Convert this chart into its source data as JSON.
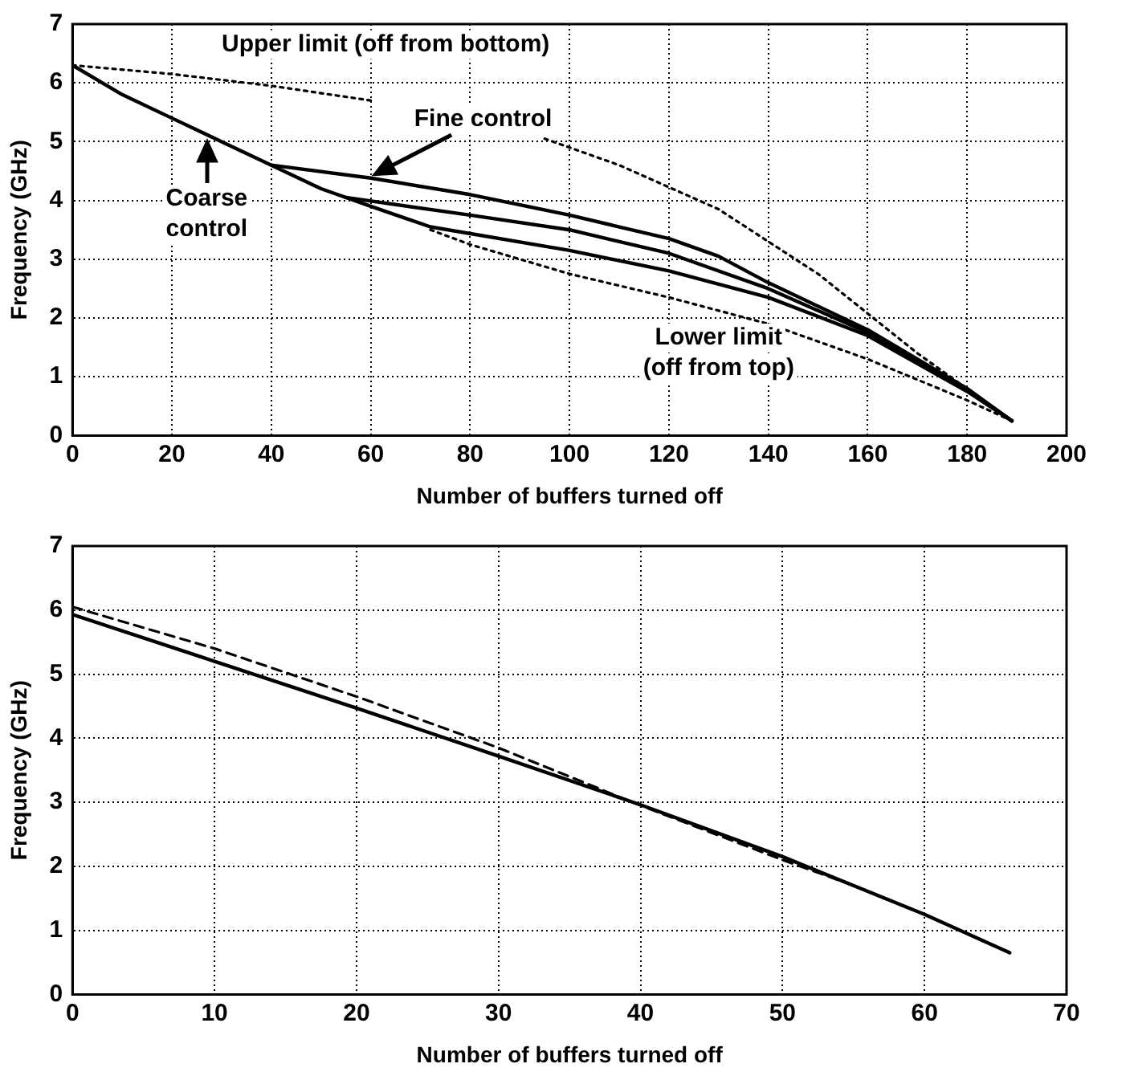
{
  "chart_data": [
    {
      "type": "line",
      "xlabel": "Number of buffers turned off",
      "ylabel": "Frequency (GHz)",
      "xlim": [
        0,
        200
      ],
      "xticks": [
        0,
        20,
        40,
        60,
        80,
        100,
        120,
        140,
        160,
        180,
        200
      ],
      "ylim": [
        0,
        7
      ],
      "yticks": [
        0,
        1,
        2,
        3,
        4,
        5,
        6,
        7
      ],
      "grid": true,
      "legend": false,
      "marker": "none",
      "annotations": [
        "Upper limit (off from bottom)",
        {
          "text": "Fine control",
          "x": 60,
          "y": 4.4
        },
        {
          "text": "Coarse\ncontrol",
          "x": 27,
          "y": 5.1
        },
        "Lower limit\n(off from top)"
      ],
      "series": [
        {
          "color": "#000000",
          "line_style": "solid",
          "x": [
            0,
            10,
            20,
            30,
            40,
            50,
            60,
            72,
            100,
            120,
            140,
            160,
            180,
            189
          ],
          "values": [
            6.3,
            5.8,
            5.4,
            5.0,
            4.6,
            4.2,
            3.9,
            3.55,
            3.15,
            2.8,
            2.35,
            1.7,
            0.75,
            0.25
          ]
        },
        {
          "color": "#000000",
          "line_style": "solid",
          "x": [
            40,
            60,
            80,
            100,
            120,
            130,
            140,
            160,
            180,
            189
          ],
          "values": [
            4.6,
            4.38,
            4.1,
            3.75,
            3.35,
            3.05,
            2.6,
            1.8,
            0.8,
            0.25
          ]
        },
        {
          "color": "#000000",
          "line_style": "solid",
          "x": [
            55,
            80,
            100,
            120,
            140,
            160,
            180,
            189
          ],
          "values": [
            4.05,
            3.75,
            3.5,
            3.1,
            2.5,
            1.75,
            0.78,
            0.25
          ]
        },
        {
          "color": "#000000",
          "line_style": "dotted",
          "x": [
            0,
            20,
            40,
            60
          ],
          "values": [
            6.3,
            6.15,
            5.95,
            5.7
          ]
        },
        {
          "color": "#000000",
          "line_style": "dotted",
          "x": [
            95,
            110,
            130,
            150,
            170,
            189
          ],
          "values": [
            5.05,
            4.6,
            3.85,
            2.75,
            1.4,
            0.25
          ]
        },
        {
          "color": "#000000",
          "line_style": "dotted",
          "x": [
            72,
            80,
            100,
            120,
            140,
            160,
            180,
            189
          ],
          "values": [
            3.5,
            3.25,
            2.75,
            2.35,
            1.9,
            1.3,
            0.6,
            0.25
          ]
        }
      ]
    },
    {
      "type": "line",
      "xlabel": "Number of buffers turned off",
      "ylabel": "Frequency (GHz)",
      "xlim": [
        0,
        70
      ],
      "xticks": [
        0,
        10,
        20,
        30,
        40,
        50,
        60,
        70
      ],
      "ylim": [
        0,
        7
      ],
      "yticks": [
        0,
        1,
        2,
        3,
        4,
        5,
        6,
        7
      ],
      "grid": true,
      "legend": false,
      "marker": "none",
      "series": [
        {
          "color": "#000000",
          "line_style": "solid",
          "x": [
            0,
            10,
            20,
            30,
            40,
            50,
            60,
            66
          ],
          "values": [
            5.93,
            5.2,
            4.47,
            3.72,
            2.96,
            2.15,
            1.25,
            0.65
          ]
        },
        {
          "color": "#000000",
          "line_style": "dashed",
          "x": [
            0,
            10,
            20,
            30,
            40,
            50,
            55,
            60,
            66
          ],
          "values": [
            6.05,
            5.4,
            4.65,
            3.85,
            2.95,
            2.1,
            1.7,
            1.25,
            0.65
          ]
        }
      ]
    }
  ]
}
